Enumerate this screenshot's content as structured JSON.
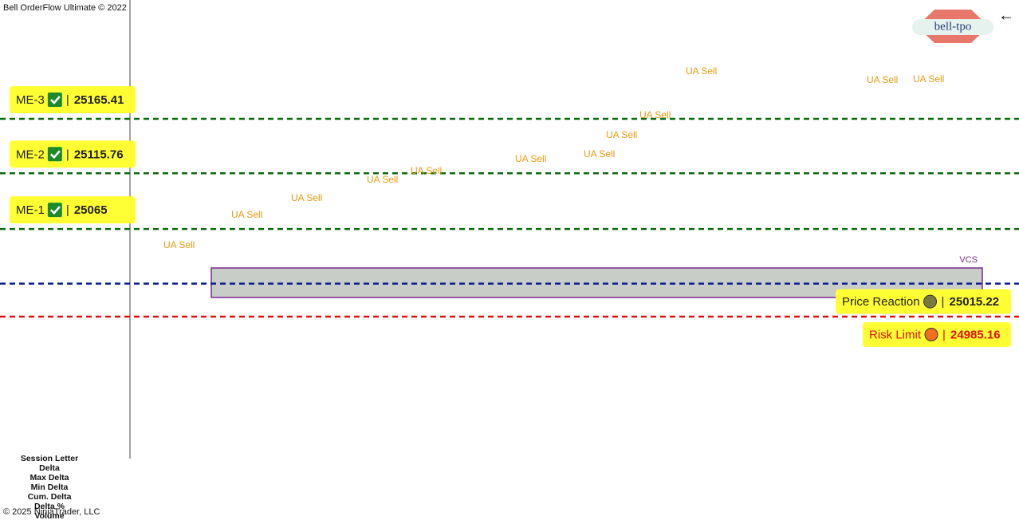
{
  "header": {
    "title": "Bell OrderFlow Ultimate © 2022",
    "logo": "bell-tpo",
    "back": "←"
  },
  "levels": [
    {
      "name": "ME-3",
      "value": 25165.41,
      "color": "#0b6b0b"
    },
    {
      "name": "ME-2",
      "value": 25115.76,
      "color": "#0b6b0b"
    },
    {
      "name": "ME-1",
      "value": 25065.0,
      "color": "#0b6b0b"
    },
    {
      "name": "Price Reaction",
      "value": 25015.22,
      "color": "#0b1f8f"
    },
    {
      "name": "Risk Limit",
      "value": 24985.16,
      "color": "#e01010"
    }
  ],
  "separator": "|",
  "zone": "VCS",
  "annotations": [
    "UA Sell",
    "UA Sell",
    "UA Sell",
    "UA Sell",
    "UA Sell",
    "UA Sell",
    "UA Sell",
    "UA Sell",
    "UA Sell",
    "UA Sell",
    "UA Sell",
    "UA Sell"
  ],
  "rows": [
    "Session Letter",
    "Delta",
    "Max Delta",
    "Min Delta",
    "Cum. Delta",
    "Delta %",
    "Volume"
  ],
  "footer": "© 2025 NinjaTrader, LLC"
}
